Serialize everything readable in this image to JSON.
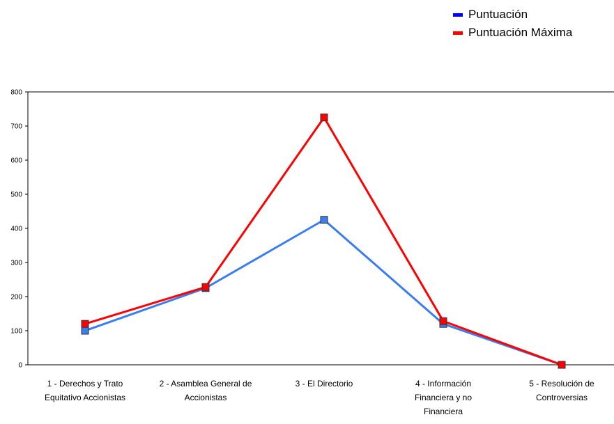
{
  "chart_data": {
    "type": "line",
    "title": "",
    "xlabel": "",
    "ylabel": "",
    "categories": [
      [
        "1 - Derechos y Trato",
        "Equitativo Accionistas"
      ],
      [
        "2 - Asamblea General de",
        "Accionistas"
      ],
      [
        "3 - El Directorio"
      ],
      [
        "4 - Información",
        "Financiera y no",
        "Financiera"
      ],
      [
        "5 - Resolución de",
        "Controversias"
      ]
    ],
    "ylim": [
      0,
      800
    ],
    "yticks": [
      0,
      100,
      200,
      300,
      400,
      500,
      600,
      700,
      800
    ],
    "grid": false,
    "legend_position": "top-right",
    "series": [
      {
        "name": "Puntuación",
        "color": "#0000ff",
        "line_color": "#3a7df0",
        "values": [
          100,
          225,
          425,
          120,
          0
        ]
      },
      {
        "name": "Puntuación Máxima",
        "color": "#ff0000",
        "line_color": "#ff0000",
        "values": [
          120,
          228,
          725,
          128,
          0
        ]
      }
    ]
  }
}
